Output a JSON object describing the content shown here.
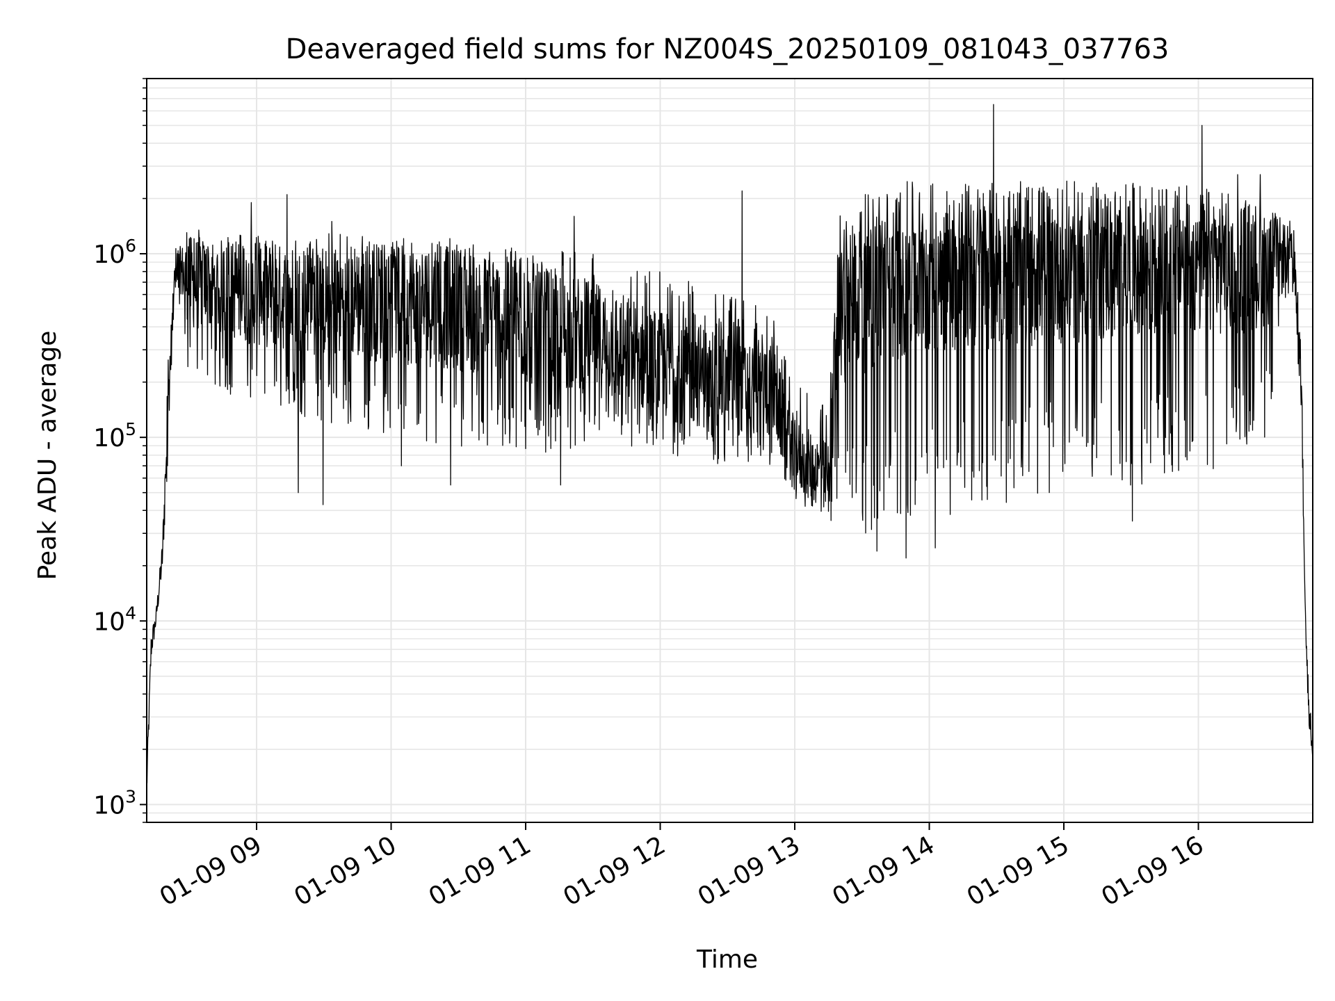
{
  "chart_data": {
    "type": "line",
    "title": "Deaveraged field sums for NZ004S_20250109_081043_037763",
    "xlabel": "Time",
    "ylabel": "Peak ADU - average",
    "yscale": "log",
    "ylim": [
      800,
      9000000
    ],
    "xlim": [
      "01-09 08:11",
      "01-09 16:51"
    ],
    "x_ticks": [
      {
        "label": "01-09 09",
        "time": "01-09 09:00"
      },
      {
        "label": "01-09 10",
        "time": "01-09 10:00"
      },
      {
        "label": "01-09 11",
        "time": "01-09 11:00"
      },
      {
        "label": "01-09 12",
        "time": "01-09 12:00"
      },
      {
        "label": "01-09 13",
        "time": "01-09 13:00"
      },
      {
        "label": "01-09 14",
        "time": "01-09 14:00"
      },
      {
        "label": "01-09 15",
        "time": "01-09 15:00"
      },
      {
        "label": "01-09 16",
        "time": "01-09 16:00"
      }
    ],
    "y_ticks": [
      {
        "base": "10",
        "exp": "3",
        "value": 1000
      },
      {
        "base": "10",
        "exp": "4",
        "value": 10000
      },
      {
        "base": "10",
        "exp": "5",
        "value": 100000
      },
      {
        "base": "10",
        "exp": "6",
        "value": 1000000
      }
    ],
    "grid": true,
    "line_color": "#000000",
    "grid_color": "#e6e6e6",
    "series": [
      {
        "envelope": [
          {
            "time": "01-09 08:11",
            "lo": 1000,
            "hi": 1500,
            "mid": 1200
          },
          {
            "time": "01-09 08:13",
            "lo": 6000,
            "hi": 9000,
            "mid": 7500
          },
          {
            "time": "01-09 08:15",
            "lo": 9000,
            "hi": 11000,
            "mid": 10000
          },
          {
            "time": "01-09 08:18",
            "lo": 18000,
            "hi": 28000,
            "mid": 22000
          },
          {
            "time": "01-09 08:21",
            "lo": 100000,
            "hi": 400000,
            "mid": 200000
          },
          {
            "time": "01-09 08:24",
            "lo": 700000,
            "hi": 1100000,
            "mid": 900000
          },
          {
            "time": "01-09 08:30",
            "lo": 200000,
            "hi": 1400000,
            "mid": 700000
          },
          {
            "time": "01-09 09:00",
            "lo": 150000,
            "hi": 1300000,
            "mid": 600000
          },
          {
            "time": "01-09 09:30",
            "lo": 120000,
            "hi": 1300000,
            "mid": 550000
          },
          {
            "time": "01-09 10:00",
            "lo": 100000,
            "hi": 1300000,
            "mid": 550000
          },
          {
            "time": "01-09 10:30",
            "lo": 90000,
            "hi": 1200000,
            "mid": 500000
          },
          {
            "time": "01-09 11:00",
            "lo": 80000,
            "hi": 1100000,
            "mid": 420000
          },
          {
            "time": "01-09 11:30",
            "lo": 90000,
            "hi": 1000000,
            "mid": 350000
          },
          {
            "time": "01-09 12:00",
            "lo": 80000,
            "hi": 800000,
            "mid": 250000
          },
          {
            "time": "01-09 12:30",
            "lo": 70000,
            "hi": 600000,
            "mid": 200000
          },
          {
            "time": "01-09 12:50",
            "lo": 70000,
            "hi": 500000,
            "mid": 180000
          },
          {
            "time": "01-09 13:00",
            "lo": 45000,
            "hi": 200000,
            "mid": 80000
          },
          {
            "time": "01-09 13:15",
            "lo": 35000,
            "hi": 150000,
            "mid": 60000
          },
          {
            "time": "01-09 13:20",
            "lo": 30000,
            "hi": 1300000,
            "mid": 600000
          },
          {
            "time": "01-09 13:45",
            "lo": 30000,
            "hi": 1300000,
            "mid": 800000
          },
          {
            "time": "01-09 14:15",
            "lo": 40000,
            "hi": 1400000,
            "mid": 850000
          },
          {
            "time": "01-09 15:00",
            "lo": 50000,
            "hi": 1500000,
            "mid": 900000
          },
          {
            "time": "01-09 16:00",
            "lo": 60000,
            "hi": 1500000,
            "mid": 900000
          },
          {
            "time": "01-09 16:30",
            "lo": 100000,
            "hi": 1500000,
            "mid": 850000
          },
          {
            "time": "01-09 16:40",
            "lo": 500000,
            "hi": 1600000,
            "mid": 1000000
          },
          {
            "time": "01-09 16:43",
            "lo": 600000,
            "hi": 1300000,
            "mid": 900000
          },
          {
            "time": "01-09 16:46",
            "lo": 100000,
            "hi": 300000,
            "mid": 150000
          },
          {
            "time": "01-09 16:48",
            "lo": 7000,
            "hi": 9500,
            "mid": 8500
          },
          {
            "time": "01-09 16:49",
            "lo": 3000,
            "hi": 5000,
            "mid": 4000
          },
          {
            "time": "01-09 16:51",
            "lo": 1700,
            "hi": 2100,
            "mid": 1800
          }
        ],
        "spikes": [
          {
            "time": "01-09 08:58",
            "value": 1900000
          },
          {
            "time": "01-09 09:14",
            "value": 2100000
          },
          {
            "time": "01-09 09:19",
            "value": 50000
          },
          {
            "time": "01-09 09:30",
            "value": 43000
          },
          {
            "time": "01-09 09:34",
            "value": 1500000
          },
          {
            "time": "01-09 10:05",
            "value": 70000
          },
          {
            "time": "01-09 10:27",
            "value": 55000
          },
          {
            "time": "01-09 11:16",
            "value": 55000
          },
          {
            "time": "01-09 11:22",
            "value": 1600000
          },
          {
            "time": "01-09 12:37",
            "value": 2200000
          },
          {
            "time": "01-09 13:37",
            "value": 24000
          },
          {
            "time": "01-09 13:50",
            "value": 22000
          },
          {
            "time": "01-09 14:03",
            "value": 25000
          },
          {
            "time": "01-09 14:29",
            "value": 6500000
          },
          {
            "time": "01-09 15:31",
            "value": 35000
          },
          {
            "time": "01-09 16:02",
            "value": 5000000
          },
          {
            "time": "01-09 16:18",
            "value": 2700000
          },
          {
            "time": "01-09 16:28",
            "value": 2700000
          }
        ]
      }
    ]
  }
}
